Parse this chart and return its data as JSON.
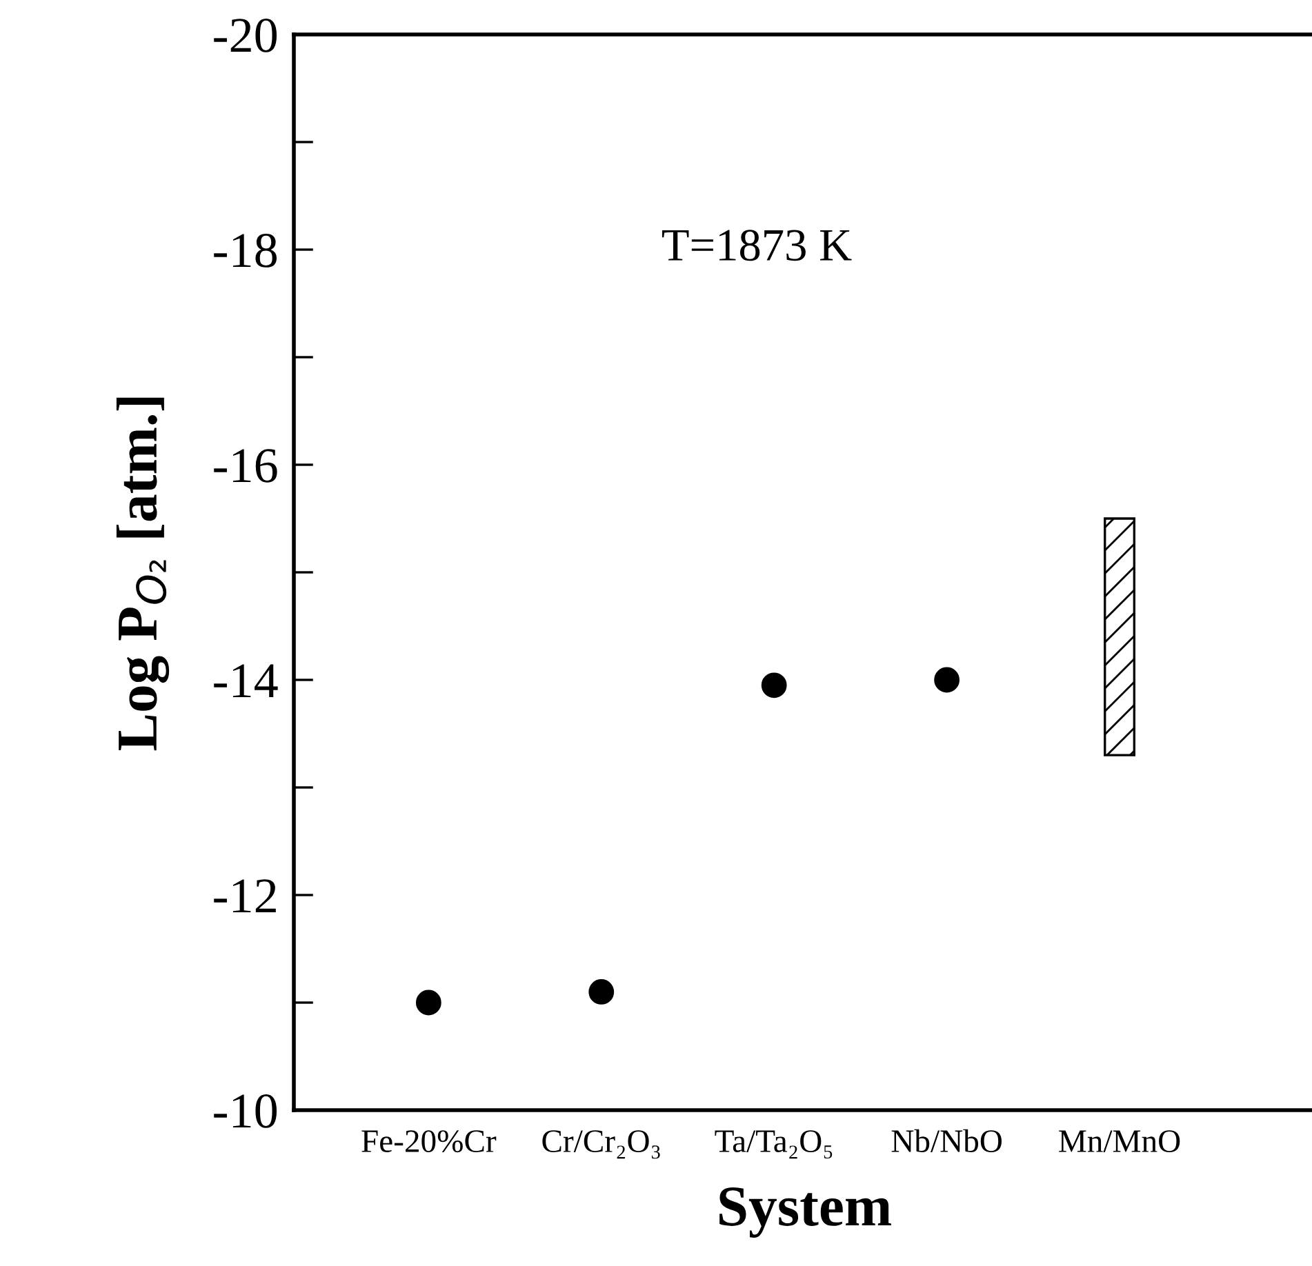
{
  "chart_data": {
    "type": "scatter",
    "xlabel": "System",
    "ylabel": "Log P$_{O₂}$ [atm.]",
    "categories": [
      "Fe-20%Cr",
      "Cr/Cr₂O₃",
      "Ta/Ta₂O₅",
      "Nb/NbO",
      "Mn/MnO"
    ],
    "series": [
      {
        "color": "#000000",
        "values": [
          -11.0,
          -11.1,
          -13.95,
          -14.0,
          null
        ]
      },
      {
        "type": "bar",
        "color": "#000000",
        "values": [
          null,
          null,
          null,
          null,
          -2.2
        ],
        "base": [
          null,
          null,
          null,
          null,
          -13.3
        ]
      }
    ],
    "ylim": [
      -10,
      -20
    ],
    "yticks": [
      -20,
      {
        "value": -19,
        "label": null
      },
      -18,
      {
        "value": -17,
        "label": null
      },
      -16,
      {
        "value": -15,
        "label": null
      },
      -14,
      {
        "value": -13,
        "label": null
      },
      -12,
      {
        "value": -11,
        "label": null
      },
      -10
    ],
    "annotations": [
      "T=1873 K"
    ],
    "marker": "circle",
    "grid": false,
    "legend": false
  }
}
